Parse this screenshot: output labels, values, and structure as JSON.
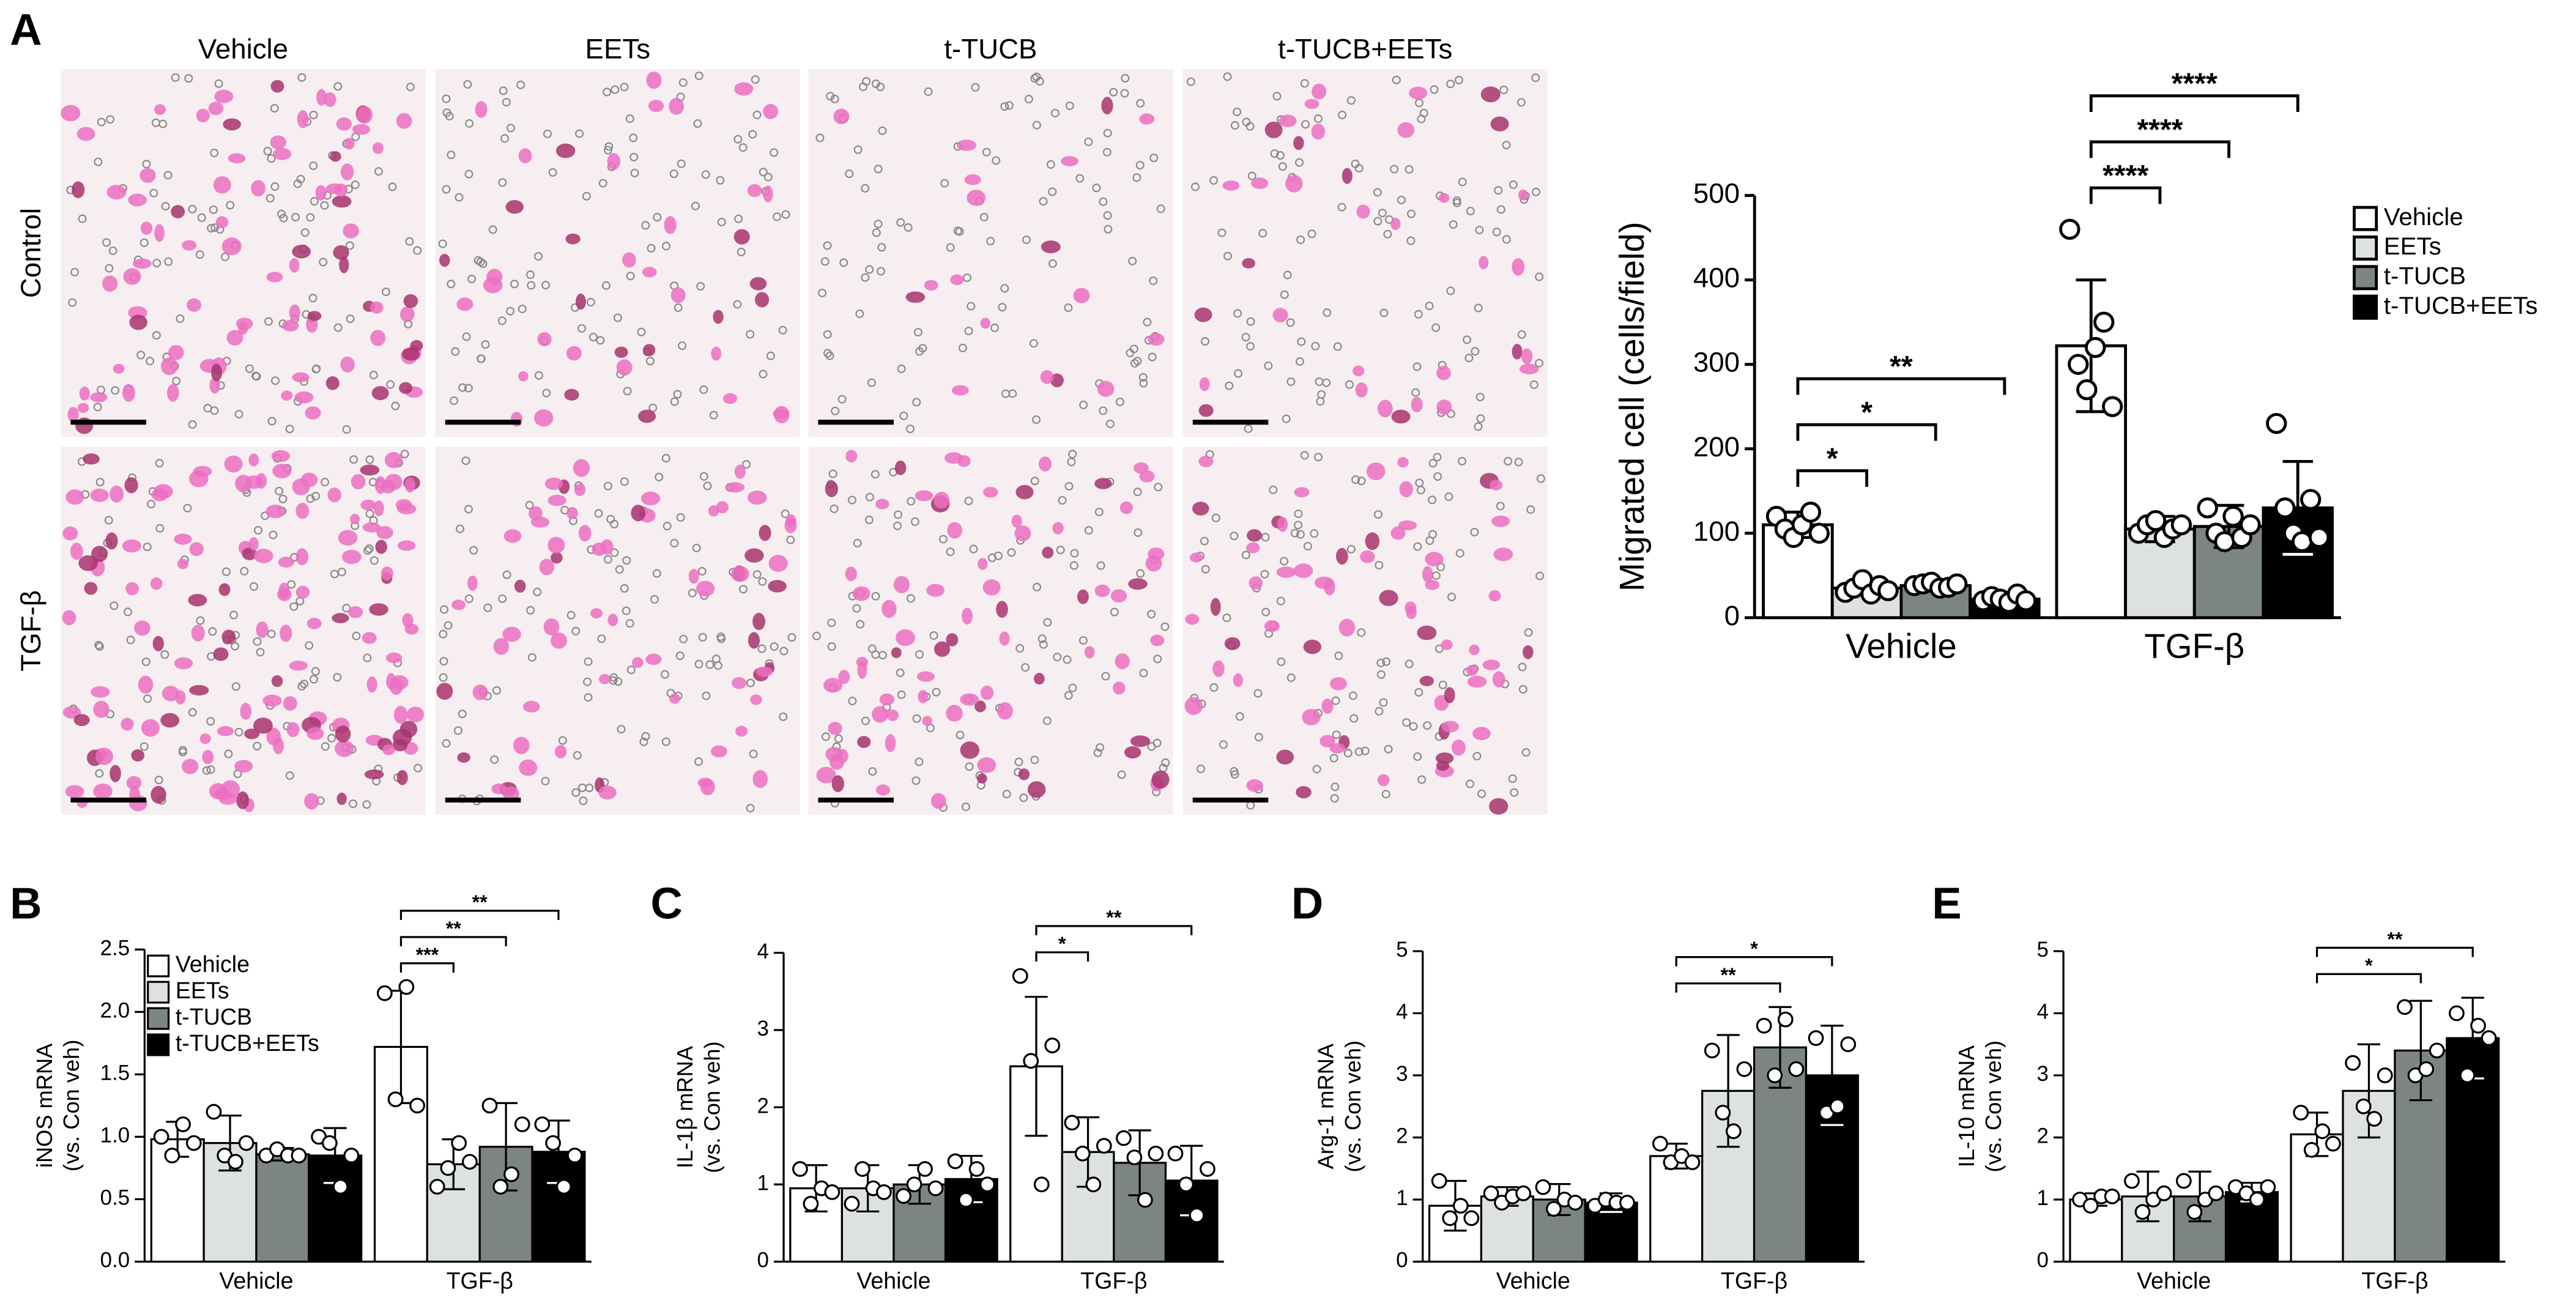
{
  "panel_labels": [
    "A",
    "B",
    "C",
    "D",
    "E"
  ],
  "micrographs": {
    "columns": [
      "Vehicle",
      "EETs",
      "t-TUCB",
      "t-TUCB+EETs"
    ],
    "rows": [
      "Control",
      "TGF-β"
    ]
  },
  "chart_data": [
    {
      "type": "bar",
      "ylabel": [
        "Migrated cell (cells/field)"
      ],
      "categories": [
        "Vehicle",
        "TGF-β"
      ],
      "ylim": [
        0,
        500
      ],
      "yticks": [
        0,
        100,
        200,
        300,
        400,
        500
      ],
      "legend": true,
      "series": [
        {
          "name": "Vehicle",
          "color": "#ffffff",
          "values": [
            110,
            322
          ],
          "errors": [
            15,
            78
          ],
          "points": [
            [
              120,
              105,
              95,
              110,
              125,
              100
            ],
            [
              460,
              300,
              270,
              320,
              350,
              250
            ]
          ]
        },
        {
          "name": "EETs",
          "color": "#dde2df",
          "values": [
            35,
            105
          ],
          "errors": [
            8,
            15
          ],
          "points": [
            [
              30,
              35,
              45,
              28,
              38,
              32
            ],
            [
              100,
              110,
              115,
              95,
              105,
              110
            ]
          ]
        },
        {
          "name": "t-TUCB",
          "color": "#7d8581",
          "values": [
            38,
            108
          ],
          "errors": [
            5,
            25
          ],
          "points": [
            [
              38,
              40,
              42,
              35,
              36,
              40
            ],
            [
              130,
              100,
              90,
              120,
              95,
              110
            ]
          ]
        },
        {
          "name": "t-TUCB+EETs",
          "color": "#000000",
          "values": [
            22,
            130
          ],
          "errors": [
            6,
            55
          ],
          "points": [
            [
              20,
              25,
              22,
              18,
              28,
              20
            ],
            [
              230,
              130,
              100,
              90,
              140,
              95
            ]
          ]
        }
      ],
      "annotations": [
        [
          "*",
          "*",
          "**"
        ],
        [
          "****",
          "****",
          "****"
        ]
      ]
    },
    {
      "type": "bar",
      "ylabel": [
        "iNOS mRNA",
        "(vs. Con veh)"
      ],
      "categories": [
        "Vehicle",
        "TGF-β"
      ],
      "ylim": [
        0,
        2.5
      ],
      "yticks": [
        {
          "value": 0,
          "label": "0.0"
        },
        0.5,
        {
          "value": 1,
          "label": "1.0"
        },
        1.5,
        {
          "value": 2,
          "label": "2.0"
        },
        2.5
      ],
      "legend": true,
      "series": [
        {
          "name": "Vehicle",
          "color": "#ffffff",
          "values": [
            0.98,
            1.72
          ],
          "errors": [
            0.14,
            0.45
          ],
          "points": [
            [
              1.0,
              0.85,
              1.1,
              0.95
            ],
            [
              2.15,
              1.3,
              2.2,
              1.25
            ]
          ]
        },
        {
          "name": "EETs",
          "color": "#dde2df",
          "values": [
            0.95,
            0.78
          ],
          "errors": [
            0.22,
            0.2
          ],
          "points": [
            [
              1.2,
              0.85,
              0.8,
              0.95
            ],
            [
              0.6,
              0.75,
              0.95,
              0.8
            ]
          ]
        },
        {
          "name": "t-TUCB",
          "color": "#7d8581",
          "values": [
            0.86,
            0.92
          ],
          "errors": [
            0.05,
            0.35
          ],
          "points": [
            [
              0.85,
              0.9,
              0.85,
              0.85
            ],
            [
              1.25,
              0.6,
              0.7,
              1.1
            ]
          ]
        },
        {
          "name": "t-TUCB+EETs",
          "color": "#000000",
          "values": [
            0.85,
            0.88
          ],
          "errors": [
            0.22,
            0.25
          ],
          "points": [
            [
              1.0,
              0.95,
              0.6,
              0.85
            ],
            [
              1.1,
              0.95,
              0.6,
              0.85
            ]
          ]
        }
      ],
      "annotations": [
        [],
        [
          "***",
          "**",
          "**"
        ]
      ]
    },
    {
      "type": "bar",
      "ylabel": [
        "IL-1β mRNA",
        "(vs. Con veh)"
      ],
      "categories": [
        "Vehicle",
        "TGF-β"
      ],
      "ylim": [
        0,
        4
      ],
      "yticks": [
        0,
        1,
        2,
        3,
        4
      ],
      "legend": false,
      "series": [
        {
          "color": "#ffffff",
          "values": [
            0.95,
            2.53
          ],
          "errors": [
            0.3,
            0.9
          ],
          "points": [
            [
              1.2,
              0.75,
              0.95,
              0.9
            ],
            [
              3.7,
              2.6,
              1.0,
              2.8
            ]
          ]
        },
        {
          "color": "#dde2df",
          "values": [
            0.95,
            1.42
          ],
          "errors": [
            0.3,
            0.45
          ],
          "points": [
            [
              0.75,
              1.2,
              0.95,
              0.9
            ],
            [
              1.8,
              1.4,
              1.0,
              1.5
            ]
          ]
        },
        {
          "color": "#7d8581",
          "values": [
            1.0,
            1.28
          ],
          "errors": [
            0.25,
            0.42
          ],
          "points": [
            [
              0.85,
              1.0,
              1.2,
              0.95
            ],
            [
              1.6,
              1.35,
              0.8,
              1.4
            ]
          ]
        },
        {
          "color": "#000000",
          "values": [
            1.07,
            1.05
          ],
          "errors": [
            0.3,
            0.45
          ],
          "points": [
            [
              1.3,
              0.8,
              1.2,
              1.0
            ],
            [
              1.4,
              1.0,
              0.6,
              1.2
            ]
          ]
        }
      ],
      "annotations": [
        [],
        [
          "*",
          "**"
        ]
      ]
    },
    {
      "type": "bar",
      "ylabel": [
        "Arg-1 mRNA",
        "(vs. Con veh)"
      ],
      "categories": [
        "Vehicle",
        "TGF-β"
      ],
      "ylim": [
        0,
        5
      ],
      "yticks": [
        0,
        1,
        2,
        3,
        4,
        5
      ],
      "legend": false,
      "series": [
        {
          "color": "#ffffff",
          "values": [
            0.9,
            1.7
          ],
          "errors": [
            0.4,
            0.2
          ],
          "points": [
            [
              1.3,
              0.7,
              0.9,
              0.7
            ],
            [
              1.9,
              1.6,
              1.7,
              1.6
            ]
          ]
        },
        {
          "color": "#dde2df",
          "values": [
            1.05,
            2.75
          ],
          "errors": [
            0.15,
            0.9
          ],
          "points": [
            [
              1.1,
              0.95,
              1.05,
              1.1
            ],
            [
              3.4,
              2.4,
              2.1,
              3.1
            ]
          ]
        },
        {
          "color": "#7d8581",
          "values": [
            1.0,
            3.45
          ],
          "errors": [
            0.25,
            0.65
          ],
          "points": [
            [
              1.2,
              0.85,
              1.0,
              0.95
            ],
            [
              3.8,
              3.0,
              3.9,
              3.1
            ]
          ]
        },
        {
          "color": "#000000",
          "values": [
            0.95,
            3.0
          ],
          "errors": [
            0.15,
            0.8
          ],
          "points": [
            [
              0.9,
              1.0,
              0.95,
              0.95
            ],
            [
              3.6,
              2.4,
              2.5,
              3.5
            ]
          ]
        }
      ],
      "annotations": [
        [],
        [
          "**",
          "*"
        ]
      ]
    },
    {
      "type": "bar",
      "ylabel": [
        "IL-10 mRNA",
        "(vs. Con veh)"
      ],
      "categories": [
        "Vehicle",
        "TGF-β"
      ],
      "ylim": [
        0,
        5
      ],
      "yticks": [
        0,
        1,
        2,
        3,
        4,
        5
      ],
      "legend": false,
      "series": [
        {
          "color": "#ffffff",
          "values": [
            1.0,
            2.05
          ],
          "errors": [
            0.1,
            0.35
          ],
          "points": [
            [
              1.0,
              0.9,
              1.05,
              1.05
            ],
            [
              2.4,
              1.8,
              2.1,
              1.9
            ]
          ]
        },
        {
          "color": "#dde2df",
          "values": [
            1.05,
            2.75
          ],
          "errors": [
            0.4,
            0.75
          ],
          "points": [
            [
              1.3,
              0.8,
              1.0,
              1.1
            ],
            [
              3.2,
              2.5,
              2.3,
              3.0
            ]
          ]
        },
        {
          "color": "#7d8581",
          "values": [
            1.05,
            3.4
          ],
          "errors": [
            0.4,
            0.8
          ],
          "points": [
            [
              1.3,
              0.8,
              1.0,
              1.1
            ],
            [
              4.1,
              3.0,
              3.1,
              3.4
            ]
          ]
        },
        {
          "color": "#000000",
          "values": [
            1.12,
            3.6
          ],
          "errors": [
            0.15,
            0.65
          ],
          "points": [
            [
              1.2,
              1.1,
              1.0,
              1.2
            ],
            [
              4.0,
              3.0,
              3.8,
              3.6
            ]
          ]
        }
      ],
      "annotations": [
        [],
        [
          "*",
          "**"
        ]
      ]
    }
  ]
}
